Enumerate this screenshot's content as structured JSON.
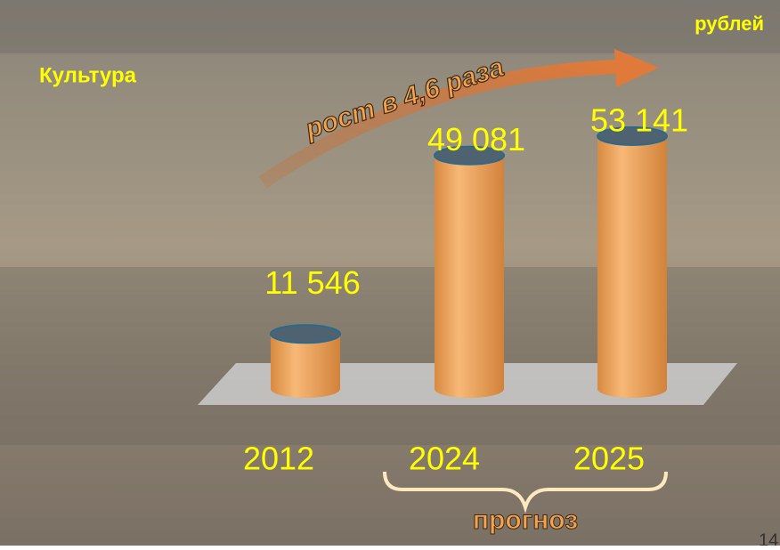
{
  "chart_data": {
    "type": "bar",
    "title": "Культура",
    "unit_label": "рублей",
    "categories": [
      "2012",
      "2024",
      "2025"
    ],
    "values": [
      11546,
      49081,
      53141
    ],
    "value_labels": [
      "11 546",
      "49 081",
      "53 141"
    ],
    "color": "#f0a050",
    "annotation": "рост в 4,6 раза",
    "forecast_label": "прогноз",
    "page_number": "14"
  }
}
